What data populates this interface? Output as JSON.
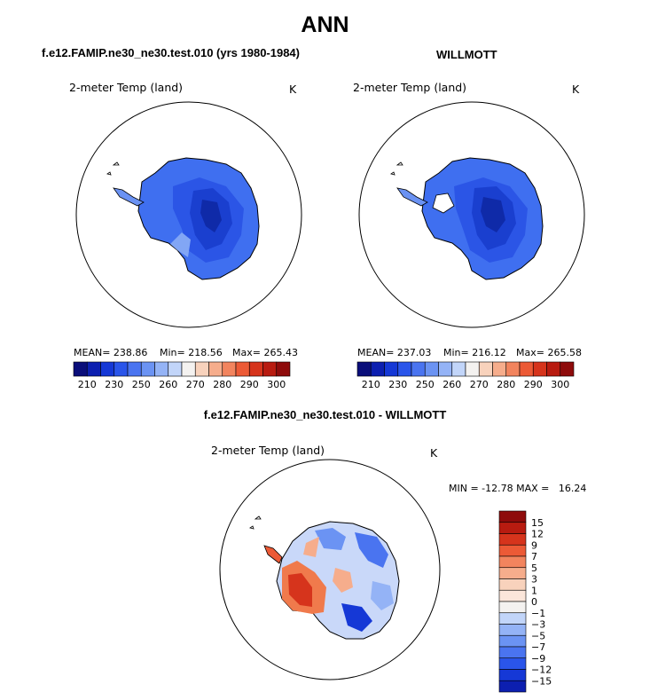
{
  "page": {
    "title": "ANN"
  },
  "panels": {
    "model": {
      "title": "f.e12.FAMIP.ne30_ne30.test.010 (yrs 1980-1984)",
      "variable": "2-meter Temp (land)",
      "units": "K",
      "stats": {
        "mean": "MEAN= 238.86",
        "min": "Min= 218.56",
        "max": "Max= 265.43"
      }
    },
    "obs": {
      "title": "WILLMOTT",
      "variable": "2-meter Temp (land)",
      "units": "K",
      "stats": {
        "mean": "MEAN= 237.03",
        "min": "Min= 216.12",
        "max": "Max= 265.58"
      }
    },
    "diff": {
      "title": "f.e12.FAMIP.ne30_ne30.test.010 - WILLMOTT",
      "variable": "2-meter Temp (land)",
      "units": "K",
      "minmax": "MIN = -12.78 MAX =   16.24"
    }
  },
  "chart_data": [
    {
      "type": "heatmap",
      "title": "f.e12.FAMIP.ne30_ne30.test.010 (yrs 1980-1984)",
      "subtitle": "2-meter Temp (land)",
      "units": "K",
      "mean": 238.86,
      "min": 218.56,
      "max": 265.43,
      "colorbar_ticks": [
        "210",
        "230",
        "250",
        "260",
        "270",
        "280",
        "290",
        "300"
      ],
      "colorbar_colors": [
        "#0a0e7a",
        "#0c1fb0",
        "#1538d6",
        "#2a55ea",
        "#4a74f0",
        "#6b93f3",
        "#94b3f6",
        "#c2d5f9",
        "#f4f2f0",
        "#f8d2bc",
        "#f6ad8c",
        "#f2845e",
        "#ec5a36",
        "#d6341c",
        "#b81b10",
        "#8e0b0b"
      ]
    },
    {
      "type": "heatmap",
      "title": "WILLMOTT",
      "subtitle": "2-meter Temp (land)",
      "units": "K",
      "mean": 237.03,
      "min": 216.12,
      "max": 265.58,
      "colorbar_ticks": [
        "210",
        "230",
        "250",
        "260",
        "270",
        "280",
        "290",
        "300"
      ],
      "colorbar_colors": [
        "#0a0e7a",
        "#0c1fb0",
        "#1538d6",
        "#2a55ea",
        "#4a74f0",
        "#6b93f3",
        "#94b3f6",
        "#c2d5f9",
        "#f4f2f0",
        "#f8d2bc",
        "#f6ad8c",
        "#f2845e",
        "#ec5a36",
        "#d6341c",
        "#b81b10",
        "#8e0b0b"
      ]
    },
    {
      "type": "heatmap",
      "title": "f.e12.FAMIP.ne30_ne30.test.010 - WILLMOTT",
      "subtitle": "2-meter Temp (land)",
      "units": "K",
      "min": -12.78,
      "max": 16.24,
      "colorbar_ticks": [
        "15",
        "12",
        "9",
        "7",
        "5",
        "3",
        "1",
        "0",
        "-1",
        "-3",
        "-5",
        "-7",
        "-9",
        "-12",
        "-15"
      ],
      "colorbar_colors": [
        "#8e0b0b",
        "#b81b10",
        "#d6341c",
        "#ec5a36",
        "#f2845e",
        "#f6ad8c",
        "#f8d2bc",
        "#fbe6da",
        "#f4f2f0",
        "#c2d5f9",
        "#94b3f6",
        "#6b93f3",
        "#4a74f0",
        "#2a55ea",
        "#1538d6",
        "#0c1fb0"
      ]
    }
  ]
}
